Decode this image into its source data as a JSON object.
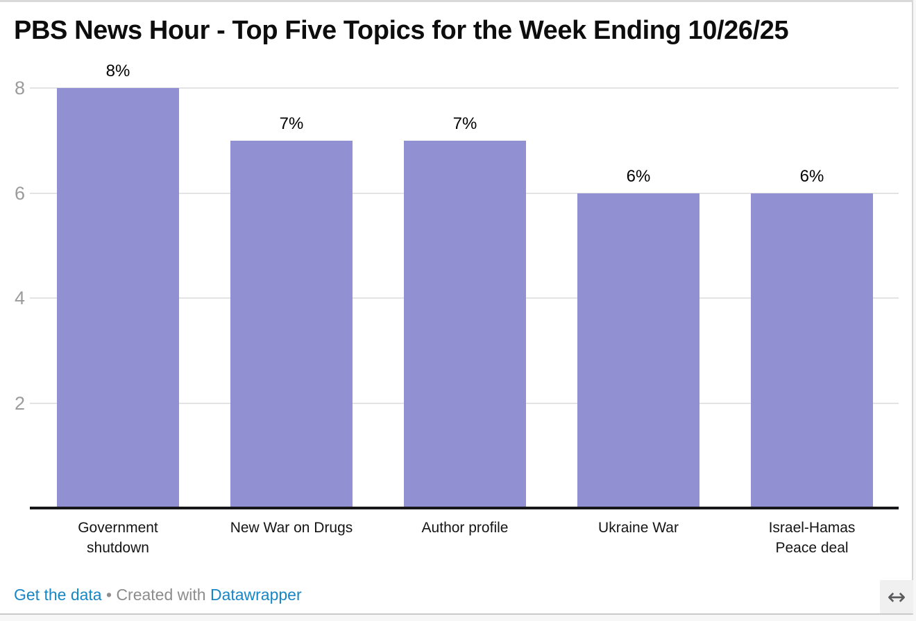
{
  "chart_data": {
    "type": "bar",
    "title": "PBS News Hour - Top Five Topics for the Week Ending 10/26/25",
    "categories": [
      "Government shutdown",
      "New War on Drugs",
      "Author profile",
      "Ukraine War",
      "Israel-Hamas Peace deal"
    ],
    "values": [
      8,
      7,
      7,
      6,
      6
    ],
    "value_labels": [
      "8%",
      "7%",
      "7%",
      "6%",
      "6%"
    ],
    "y_ticks": [
      2,
      4,
      6,
      8
    ],
    "ylim": [
      0,
      8
    ],
    "xlabel": "",
    "ylabel": "",
    "grid": true,
    "legend": "none",
    "bar_color": "#9190d3"
  },
  "colors": {
    "gridline": "#e3e3e3",
    "axis_line": "#17171a",
    "tick_label": "#9b9b9b",
    "link_blue": "#1786c5",
    "footer_gray": "#8c8c8c"
  },
  "footer": {
    "get_data_label": "Get the data",
    "separator": "•",
    "created_with": "Created with ",
    "tool_name": "Datawrapper"
  },
  "icons": {
    "resize_horizontal": "↔"
  }
}
